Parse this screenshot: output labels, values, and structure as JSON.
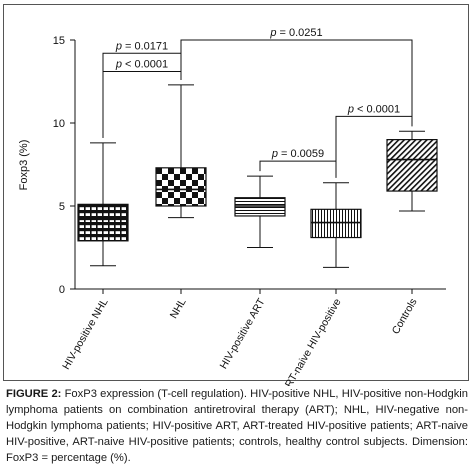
{
  "chart_data": {
    "type": "box",
    "ylabel": "Foxp3 (%)",
    "ylim": [
      0,
      15
    ],
    "yticks": [
      0,
      5,
      10,
      15
    ],
    "grid": false,
    "categories": [
      "HIV-positive NHL",
      "NHL",
      "HIV-positive ART",
      "ART-naive HIV-positive",
      "Controls"
    ],
    "boxes": [
      {
        "category": "HIV-positive NHL",
        "min": 1.4,
        "q1": 2.9,
        "median": 4.2,
        "q3": 5.1,
        "max": 8.8,
        "pattern": "grid"
      },
      {
        "category": "NHL",
        "min": 4.3,
        "q1": 5.0,
        "median": 6.0,
        "q3": 7.3,
        "max": 12.3,
        "pattern": "checker"
      },
      {
        "category": "HIV-positive ART",
        "min": 2.5,
        "q1": 4.4,
        "median": 5.0,
        "q3": 5.5,
        "max": 6.8,
        "pattern": "hlines"
      },
      {
        "category": "ART-naive HIV-positive",
        "min": 1.3,
        "q1": 3.1,
        "median": 4.0,
        "q3": 4.8,
        "max": 6.4,
        "pattern": "vlines"
      },
      {
        "category": "Controls",
        "min": 4.7,
        "q1": 5.9,
        "median": 7.8,
        "q3": 9.0,
        "max": 9.5,
        "pattern": "diagonal"
      }
    ],
    "annotations": [
      {
        "p_label": "p",
        "text": " = 0.0171",
        "from": 0,
        "to": 1,
        "y": 14.2
      },
      {
        "p_label": "p",
        "text": " < 0.0001",
        "from": 0,
        "to": 1,
        "y": 13.1
      },
      {
        "p_label": "p",
        "text": " = 0.0251",
        "from": 1,
        "to": 4,
        "y": 15.0
      },
      {
        "p_label": "p",
        "text": " = 0.0059",
        "from": 2,
        "to": 3,
        "y": 7.7
      },
      {
        "p_label": "p",
        "text": " < 0.0001",
        "from": 3,
        "to": 4,
        "y": 10.4
      }
    ]
  },
  "caption": {
    "label": "FIGURE 2:",
    "text": " FoxP3 expression (T-cell regulation). HIV-positive NHL, HIV-positive non-Hodgkin lymphoma patients on combination antiretroviral therapy (ART); NHL, HIV-negative non-Hodgkin lymphoma patients; HIV-positive ART, ART-treated HIV-positive patients; ART-naive HIV-positive, ART-naive HIV-positive patients; controls, healthy control subjects. Dimension: FoxP3 = percentage (%)."
  }
}
